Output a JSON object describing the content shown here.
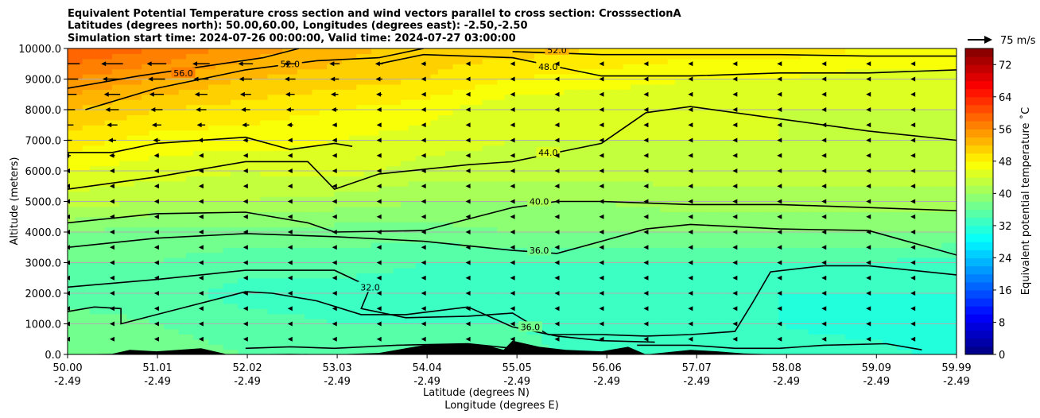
{
  "title_lines": [
    "Equivalent Potential Temperature cross section and wind vectors parallel to cross section: CrosssectionA",
    "Latitudes (degrees north): 50.00,60.00, Longitudes (degrees east): -2.50,-2.50",
    "Simulation start time: 2024-07-26 00:00:00, Valid time: 2024-07-27 03:00:00"
  ],
  "quiver_key": "75 m/s",
  "colors": {
    "background": "#ffffff",
    "terrain": "#000000",
    "contour_line": "#000000",
    "gridline": "#b0b0b0"
  },
  "chart_data": {
    "type": "heatmap",
    "subtype": "filled contour cross section with line contours, wind vectors and terrain",
    "xlabel": "Latitude (degrees N)",
    "xlabel2": "Longitude (degrees E)",
    "ylabel": "Altitude (meters)",
    "ylim": [
      0,
      10000
    ],
    "xlim": [
      50.0,
      59.99
    ],
    "x_ticks": [
      {
        "lat": "50.00",
        "lon": "-2.49",
        "v": 50.0
      },
      {
        "lat": "51.01",
        "lon": "-2.49",
        "v": 51.01
      },
      {
        "lat": "52.02",
        "lon": "-2.49",
        "v": 52.02
      },
      {
        "lat": "53.03",
        "lon": "-2.49",
        "v": 53.03
      },
      {
        "lat": "54.04",
        "lon": "-2.49",
        "v": 54.04
      },
      {
        "lat": "55.05",
        "lon": "-2.49",
        "v": 55.05
      },
      {
        "lat": "56.06",
        "lon": "-2.49",
        "v": 56.06
      },
      {
        "lat": "57.07",
        "lon": "-2.49",
        "v": 57.07
      },
      {
        "lat": "58.08",
        "lon": "-2.49",
        "v": 58.08
      },
      {
        "lat": "59.09",
        "lon": "-2.49",
        "v": 59.09
      },
      {
        "lat": "59.99",
        "lon": "-2.49",
        "v": 59.99
      }
    ],
    "y_ticks": [
      "0.0",
      "1000.0",
      "2000.0",
      "3000.0",
      "4000.0",
      "5000.0",
      "6000.0",
      "7000.0",
      "8000.0",
      "9000.0",
      "10000.0"
    ],
    "grid": "horizontal",
    "colorbar": {
      "label": "Equivalent potential temperature $^\\circ$C",
      "label_text": "Equivalent potential temperature ˚C",
      "min": 0,
      "max": 76,
      "step": 2,
      "ticks": [
        "0",
        "8",
        "16",
        "24",
        "32",
        "40",
        "48",
        "56",
        "64",
        "72"
      ],
      "colormap": "jet"
    },
    "field_samples": {
      "x": [
        50.0,
        51.0,
        52.0,
        53.0,
        54.0,
        55.0,
        56.0,
        57.0,
        58.0,
        59.0,
        59.99
      ],
      "z": [
        0,
        1000,
        2000,
        3000,
        4000,
        5000,
        6000,
        7000,
        8000,
        9000,
        10000
      ],
      "theta_e": [
        [
          38,
          37,
          36,
          35,
          36,
          35,
          33,
          32,
          33,
          33,
          31
        ],
        [
          37,
          36,
          35,
          34,
          34,
          34,
          33,
          32,
          32,
          31,
          31
        ],
        [
          35,
          35,
          33,
          33,
          33,
          33,
          33,
          33,
          32,
          32,
          32
        ],
        [
          36,
          36,
          35,
          35,
          34,
          34,
          34,
          34,
          34,
          34,
          33
        ],
        [
          38,
          37,
          37,
          37,
          37,
          38,
          38,
          38,
          38,
          38,
          38
        ],
        [
          43,
          42,
          42,
          41,
          40,
          40,
          40,
          41,
          41,
          41,
          41
        ],
        [
          46,
          45,
          44,
          45,
          43,
          43,
          43,
          43,
          43,
          43,
          43
        ],
        [
          49,
          47,
          47,
          46,
          45,
          44,
          44,
          44,
          44,
          43,
          43
        ],
        [
          52,
          50,
          49,
          48,
          47,
          44,
          44,
          44,
          44,
          44,
          44
        ],
        [
          56,
          54,
          52,
          51,
          50,
          48,
          47,
          46,
          46,
          45,
          45
        ],
        [
          60,
          58,
          55,
          53,
          51,
          51,
          50,
          49,
          49,
          48,
          48
        ]
      ]
    },
    "contours": [
      {
        "level": 32.0,
        "label": "32.0",
        "points": [
          [
            50.0,
            2200
          ],
          [
            51.0,
            2450
          ],
          [
            52.0,
            2750
          ],
          [
            53.0,
            2750
          ],
          [
            53.4,
            2200
          ],
          [
            53.3,
            1500
          ],
          [
            53.8,
            1200
          ],
          [
            54.5,
            1250
          ],
          [
            55.0,
            1350
          ],
          [
            55.4,
            650
          ],
          [
            56.0,
            650
          ],
          [
            56.5,
            600
          ],
          [
            57.0,
            650
          ],
          [
            57.5,
            750
          ],
          [
            57.7,
            1700
          ],
          [
            57.9,
            2700
          ],
          [
            58.5,
            2900
          ],
          [
            59.0,
            2900
          ],
          [
            59.99,
            2600
          ]
        ],
        "label_at": [
          53.4,
          2200
        ]
      },
      {
        "level": 32.0,
        "label": "32.0",
        "points": [
          [
            52.0,
            200
          ],
          [
            52.5,
            250
          ],
          [
            53.0,
            200
          ],
          [
            53.7,
            300
          ],
          [
            54.5,
            350
          ],
          [
            55.0,
            200
          ]
        ]
      },
      {
        "level": 32.0,
        "label": "32.0",
        "points": [
          [
            56.4,
            300
          ],
          [
            57.0,
            300
          ],
          [
            57.5,
            200
          ],
          [
            58.0,
            200
          ],
          [
            58.5,
            300
          ],
          [
            59.2,
            350
          ],
          [
            59.6,
            150
          ]
        ]
      },
      {
        "level": 36.0,
        "label": "36.0",
        "points": [
          [
            50.0,
            1400
          ],
          [
            50.3,
            1550
          ],
          [
            50.6,
            1500
          ],
          [
            50.6,
            1000
          ],
          [
            51.0,
            1300
          ],
          [
            52.0,
            2050
          ],
          [
            52.3,
            2000
          ],
          [
            52.8,
            1750
          ],
          [
            53.3,
            1300
          ],
          [
            53.8,
            1300
          ],
          [
            54.5,
            1550
          ],
          [
            55.0,
            900
          ],
          [
            55.5,
            600
          ],
          [
            56.0,
            450
          ],
          [
            56.6,
            400
          ]
        ],
        "label_at": [
          55.2,
          900
        ]
      },
      {
        "level": 36.0,
        "label": "36.0",
        "points": [
          [
            50.0,
            3500
          ],
          [
            51.0,
            3800
          ],
          [
            52.0,
            3950
          ],
          [
            53.0,
            3850
          ],
          [
            54.0,
            3700
          ],
          [
            55.0,
            3400
          ],
          [
            55.5,
            3300
          ],
          [
            56.0,
            3700
          ],
          [
            56.5,
            4100
          ],
          [
            57.0,
            4250
          ],
          [
            58.0,
            4100
          ],
          [
            59.0,
            4050
          ],
          [
            59.99,
            3250
          ]
        ],
        "label_at": [
          55.3,
          3400
        ]
      },
      {
        "level": 40.0,
        "label": "40.0",
        "points": [
          [
            50.0,
            4300
          ],
          [
            51.0,
            4600
          ],
          [
            52.0,
            4650
          ],
          [
            52.7,
            4300
          ],
          [
            53.0,
            4000
          ],
          [
            54.0,
            4050
          ],
          [
            55.0,
            4800
          ],
          [
            55.5,
            5000
          ],
          [
            56.0,
            5000
          ],
          [
            57.0,
            4900
          ],
          [
            58.0,
            4900
          ],
          [
            59.0,
            4800
          ],
          [
            59.99,
            4700
          ]
        ],
        "label_at": [
          55.3,
          5000
        ]
      },
      {
        "level": 44.0,
        "label": "44.0",
        "points": [
          [
            50.0,
            5400
          ],
          [
            51.0,
            5800
          ],
          [
            52.0,
            6300
          ],
          [
            52.7,
            6300
          ],
          [
            53.0,
            5400
          ],
          [
            53.5,
            5900
          ],
          [
            54.5,
            6200
          ],
          [
            55.0,
            6300
          ],
          [
            55.5,
            6600
          ],
          [
            56.0,
            6900
          ],
          [
            56.5,
            7900
          ],
          [
            57.0,
            8100
          ],
          [
            58.0,
            7700
          ],
          [
            59.0,
            7300
          ],
          [
            59.99,
            7000
          ]
        ],
        "label_at": [
          55.4,
          6600
        ]
      },
      {
        "level": 48.0,
        "label": "48.0",
        "points": [
          [
            50.0,
            6600
          ],
          [
            50.5,
            6600
          ],
          [
            51.0,
            6900
          ],
          [
            52.0,
            7100
          ],
          [
            52.5,
            6700
          ],
          [
            53.0,
            6900
          ],
          [
            53.2,
            6800
          ]
        ]
      },
      {
        "level": 48.0,
        "label": "48.0",
        "points": [
          [
            53.5,
            9500
          ],
          [
            54.0,
            9800
          ],
          [
            55.0,
            9700
          ],
          [
            55.5,
            9400
          ],
          [
            56.0,
            9100
          ],
          [
            57.0,
            9100
          ],
          [
            58.0,
            9200
          ],
          [
            59.0,
            9200
          ],
          [
            59.99,
            9300
          ]
        ],
        "label_at": [
          55.4,
          9400
        ]
      },
      {
        "level": 52.0,
        "label": "52.0",
        "points": [
          [
            50.2,
            8000
          ],
          [
            51.0,
            8700
          ],
          [
            52.0,
            9300
          ],
          [
            52.8,
            9600
          ],
          [
            53.5,
            9700
          ],
          [
            54.0,
            10000
          ]
        ],
        "label_at": [
          52.5,
          9500
        ]
      },
      {
        "level": 52.0,
        "label": "52.0",
        "points": [
          [
            55.0,
            9900
          ],
          [
            56.0,
            9800
          ],
          [
            57.0,
            9800
          ],
          [
            58.0,
            9800
          ],
          [
            59.0,
            9750
          ],
          [
            59.99,
            9750
          ]
        ],
        "label_at": [
          55.5,
          9950
        ]
      },
      {
        "level": 56.0,
        "label": "56.0",
        "points": [
          [
            50.0,
            8700
          ],
          [
            50.8,
            9100
          ],
          [
            51.5,
            9400
          ],
          [
            52.2,
            9700
          ],
          [
            52.6,
            10000
          ]
        ],
        "label_at": [
          51.3,
          9200
        ]
      }
    ],
    "wind_vectors": {
      "direction": "negative x (toward lower latitude)",
      "max_speed_ms": 75,
      "rows_z": [
        500,
        1000,
        1500,
        2000,
        2500,
        3000,
        3500,
        4000,
        4500,
        5000,
        5500,
        6000,
        6500,
        7000,
        7500,
        8000,
        8500,
        9000,
        9500
      ],
      "strong_region": "upper levels near 50-53 N (~20-40 m/s); weak elsewhere"
    },
    "terrain_profile": [
      [
        50.0,
        0
      ],
      [
        50.5,
        20
      ],
      [
        50.7,
        150
      ],
      [
        51.0,
        100
      ],
      [
        51.5,
        200
      ],
      [
        51.8,
        0
      ],
      [
        52.5,
        20
      ],
      [
        53.0,
        0
      ],
      [
        53.5,
        50
      ],
      [
        54.0,
        300
      ],
      [
        54.4,
        350
      ],
      [
        54.7,
        300
      ],
      [
        54.9,
        150
      ],
      [
        55.0,
        450
      ],
      [
        55.3,
        250
      ],
      [
        55.6,
        150
      ],
      [
        56.0,
        100
      ],
      [
        56.3,
        250
      ],
      [
        56.5,
        0
      ],
      [
        57.0,
        150
      ],
      [
        57.3,
        100
      ],
      [
        57.6,
        30
      ],
      [
        58.0,
        0
      ]
    ]
  }
}
